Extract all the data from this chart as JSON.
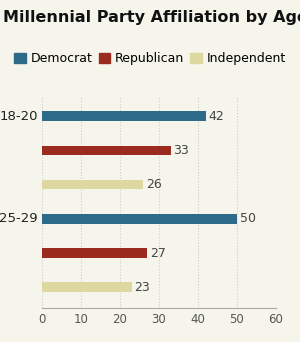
{
  "title": "Millennial Party Affiliation by Age",
  "groups": [
    "18-20",
    "25-29"
  ],
  "categories": [
    "Democrat",
    "Republican",
    "Independent"
  ],
  "values": {
    "18-20": [
      42,
      33,
      26
    ],
    "25-29": [
      50,
      27,
      23
    ]
  },
  "colors": [
    "#2e6b8a",
    "#9b2b1e",
    "#ddd8a0"
  ],
  "xlim": [
    0,
    60
  ],
  "xticks": [
    0,
    10,
    20,
    30,
    40,
    50,
    60
  ],
  "bar_height": 0.28,
  "label_fontsize": 9,
  "title_fontsize": 11.5,
  "legend_fontsize": 9,
  "tick_fontsize": 8.5,
  "background_color": "#f5f5eb"
}
